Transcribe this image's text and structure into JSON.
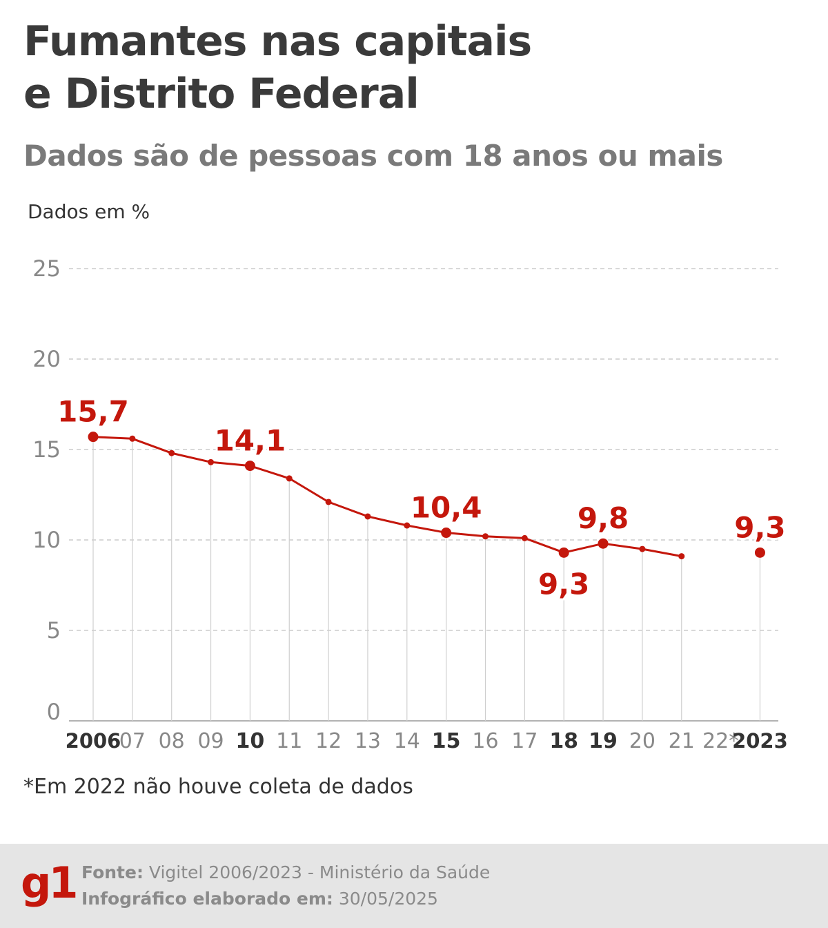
{
  "title_lines": [
    "Fumantes nas capitais",
    "e Distrito Federal"
  ],
  "subtitle": "Dados são de pessoas com 18 anos ou mais",
  "unit_label": "Dados em %",
  "note": "*Em 2022 não houve coleta de dados",
  "footer": {
    "logo": "g1",
    "source_label": "Fonte:",
    "source_value": "Vigitel 2006/2023 - Ministério da Saúde",
    "date_label": "Infográfico elaborado em:",
    "date_value": "30/05/2025"
  },
  "colors": {
    "series": "#c4170c",
    "grid": "#cccccc",
    "axis_text": "#888888",
    "tick_bold": "#333333"
  },
  "chart_data": {
    "type": "line",
    "x": [
      "2006",
      "07",
      "08",
      "09",
      "10",
      "11",
      "12",
      "13",
      "14",
      "15",
      "16",
      "17",
      "18",
      "19",
      "20",
      "21",
      "22*",
      "2023"
    ],
    "bold_ticks": [
      "2006",
      "10",
      "15",
      "18",
      "19",
      "2023"
    ],
    "series": [
      {
        "values": [
          15.7,
          15.6,
          14.8,
          14.3,
          14.1,
          13.4,
          12.1,
          11.3,
          10.8,
          10.4,
          10.2,
          10.1,
          9.3,
          9.8,
          9.5,
          9.1,
          null,
          9.3
        ]
      }
    ],
    "data_labels": [
      {
        "x": "2006",
        "text": "15,7",
        "position": "above"
      },
      {
        "x": "10",
        "text": "14,1",
        "position": "above"
      },
      {
        "x": "15",
        "text": "10,4",
        "position": "above"
      },
      {
        "x": "18",
        "text": "9,3",
        "position": "below"
      },
      {
        "x": "19",
        "text": "9,8",
        "position": "above"
      },
      {
        "x": "2023",
        "text": "9,3",
        "position": "above"
      }
    ],
    "yticks": [
      0,
      5,
      10,
      15,
      20,
      25
    ],
    "ylim": [
      0,
      25
    ],
    "grid": true,
    "legend": "none"
  }
}
